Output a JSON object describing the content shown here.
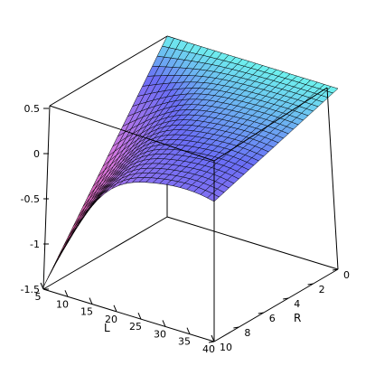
{
  "chart_data": {
    "type": "surface",
    "xlabel": "L",
    "ylabel": "R",
    "zlabel": "",
    "x_range": [
      5,
      40
    ],
    "y_range": [
      0,
      10
    ],
    "z_range": [
      -1.5,
      0.5
    ],
    "x_ticks": [
      "5",
      "10",
      "15",
      "20",
      "25",
      "30",
      "35",
      "40"
    ],
    "y_ticks": [
      "0",
      "2",
      "4",
      "6",
      "8",
      "10"
    ],
    "z_ticks": [
      "0.5",
      "0",
      "-0.5",
      "-1",
      "-1.5"
    ],
    "grid_resolution": [
      25,
      25
    ],
    "corner_values": {
      "L5_R0": 0.5,
      "L40_R0": 0.5,
      "L40_R10": 0.05,
      "L5_R10": -1.5
    },
    "colors": {
      "low": "#dc3c64",
      "mid": "#d478e0",
      "high": "#6a6ef6",
      "flat": "#6ef2ee",
      "mesh": "#000000",
      "box": "#000000"
    }
  }
}
